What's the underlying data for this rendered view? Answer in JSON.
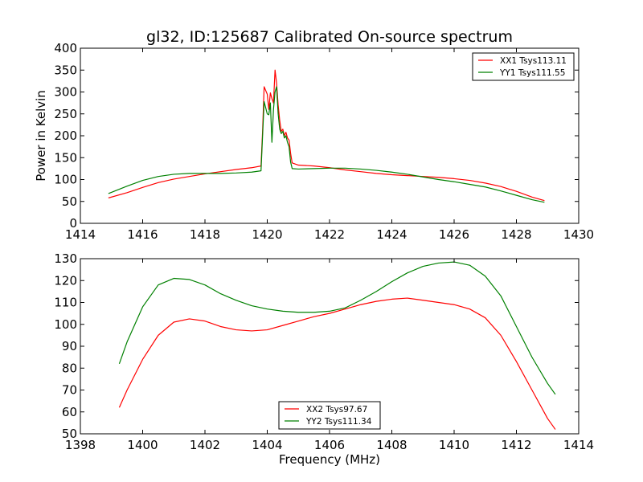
{
  "figure": {
    "title": "gl32, ID:125687 Calibrated On-source spectrum"
  },
  "chart_data": [
    {
      "type": "line",
      "title": "gl32, ID:125687 Calibrated On-source spectrum",
      "xlabel": "",
      "ylabel": "Power in Kelvin",
      "xlim": [
        1414,
        1430
      ],
      "ylim": [
        0,
        400
      ],
      "xticks": [
        1414,
        1416,
        1418,
        1420,
        1422,
        1424,
        1426,
        1428,
        1430
      ],
      "yticks": [
        0,
        50,
        100,
        150,
        200,
        250,
        300,
        350,
        400
      ],
      "legend": "top-right",
      "grid": false,
      "series": [
        {
          "name": "XX1 Tsys113.11",
          "color": "#ff0000",
          "x": [
            1414.9,
            1415.5,
            1416.0,
            1416.5,
            1417.0,
            1417.5,
            1418.0,
            1418.5,
            1419.0,
            1419.5,
            1419.8,
            1419.85,
            1419.9,
            1420.0,
            1420.05,
            1420.1,
            1420.15,
            1420.2,
            1420.25,
            1420.3,
            1420.35,
            1420.4,
            1420.45,
            1420.5,
            1420.55,
            1420.6,
            1420.65,
            1420.7,
            1420.75,
            1420.8,
            1421.0,
            1421.5,
            1422.0,
            1422.5,
            1423.0,
            1423.5,
            1424.0,
            1424.5,
            1425.0,
            1425.5,
            1426.0,
            1426.5,
            1427.0,
            1427.5,
            1428.0,
            1428.5,
            1428.9
          ],
          "y": [
            58,
            70,
            82,
            93,
            101,
            107,
            113,
            118,
            123,
            127,
            131,
            210,
            312,
            295,
            260,
            298,
            285,
            275,
            350,
            320,
            270,
            235,
            210,
            215,
            200,
            208,
            195,
            190,
            160,
            138,
            133,
            131,
            127,
            122,
            118,
            114,
            111,
            109,
            107,
            105,
            102,
            98,
            92,
            84,
            73,
            60,
            52
          ]
        },
        {
          "name": "YY1 Tsys111.55",
          "color": "#008000",
          "x": [
            1414.9,
            1415.5,
            1416.0,
            1416.5,
            1417.0,
            1417.5,
            1418.0,
            1418.5,
            1419.0,
            1419.5,
            1419.8,
            1419.85,
            1419.9,
            1420.0,
            1420.05,
            1420.1,
            1420.15,
            1420.2,
            1420.25,
            1420.3,
            1420.35,
            1420.4,
            1420.45,
            1420.5,
            1420.55,
            1420.6,
            1420.65,
            1420.7,
            1420.75,
            1420.8,
            1421.0,
            1421.5,
            1422.0,
            1422.5,
            1423.0,
            1423.5,
            1424.0,
            1424.5,
            1425.0,
            1425.5,
            1426.0,
            1426.5,
            1427.0,
            1427.5,
            1428.0,
            1428.5,
            1428.9
          ],
          "y": [
            68,
            85,
            98,
            107,
            112,
            114,
            114,
            114,
            115,
            117,
            120,
            200,
            278,
            250,
            248,
            275,
            185,
            260,
            300,
            312,
            250,
            215,
            205,
            210,
            195,
            200,
            185,
            175,
            140,
            125,
            124,
            125,
            126,
            126,
            124,
            121,
            117,
            112,
            106,
            100,
            95,
            89,
            83,
            74,
            64,
            54,
            48
          ]
        }
      ]
    },
    {
      "type": "line",
      "title": "",
      "xlabel": "Frequency (MHz)",
      "ylabel": "",
      "xlim": [
        1398,
        1414
      ],
      "ylim": [
        50,
        130
      ],
      "xticks": [
        1398,
        1400,
        1402,
        1404,
        1406,
        1408,
        1410,
        1412,
        1414
      ],
      "yticks": [
        50,
        60,
        70,
        80,
        90,
        100,
        110,
        120,
        130
      ],
      "legend": "bottom-center",
      "grid": false,
      "series": [
        {
          "name": "XX2 Tsys97.67",
          "color": "#ff0000",
          "x": [
            1399.25,
            1399.5,
            1400.0,
            1400.5,
            1401.0,
            1401.5,
            1402.0,
            1402.5,
            1403.0,
            1403.5,
            1404.0,
            1404.5,
            1405.0,
            1405.5,
            1406.0,
            1406.5,
            1407.0,
            1407.5,
            1408.0,
            1408.5,
            1409.0,
            1409.5,
            1410.0,
            1410.5,
            1411.0,
            1411.5,
            1412.0,
            1412.5,
            1413.0,
            1413.25
          ],
          "y": [
            62,
            70,
            84,
            95,
            101,
            102.5,
            101.5,
            99,
            97.5,
            97,
            97.5,
            99.5,
            101.5,
            103.5,
            105,
            107,
            109,
            110.5,
            111.5,
            112,
            111,
            110,
            109,
            107,
            103,
            95,
            83,
            70,
            57,
            52
          ]
        },
        {
          "name": "YY2 Tsys111.34",
          "color": "#008000",
          "x": [
            1399.25,
            1399.5,
            1400.0,
            1400.5,
            1401.0,
            1401.5,
            1402.0,
            1402.5,
            1403.0,
            1403.5,
            1404.0,
            1404.5,
            1405.0,
            1405.5,
            1406.0,
            1406.5,
            1407.0,
            1407.5,
            1408.0,
            1408.5,
            1409.0,
            1409.5,
            1410.0,
            1410.5,
            1411.0,
            1411.5,
            1412.0,
            1412.5,
            1413.0,
            1413.25
          ],
          "y": [
            82,
            92,
            108,
            118,
            121,
            120.5,
            118,
            114,
            111,
            108.5,
            107,
            106,
            105.5,
            105.5,
            106,
            107.5,
            111,
            115,
            119.5,
            123.5,
            126.5,
            128,
            128.5,
            127,
            122,
            113,
            99,
            85,
            73,
            68
          ]
        }
      ]
    }
  ]
}
